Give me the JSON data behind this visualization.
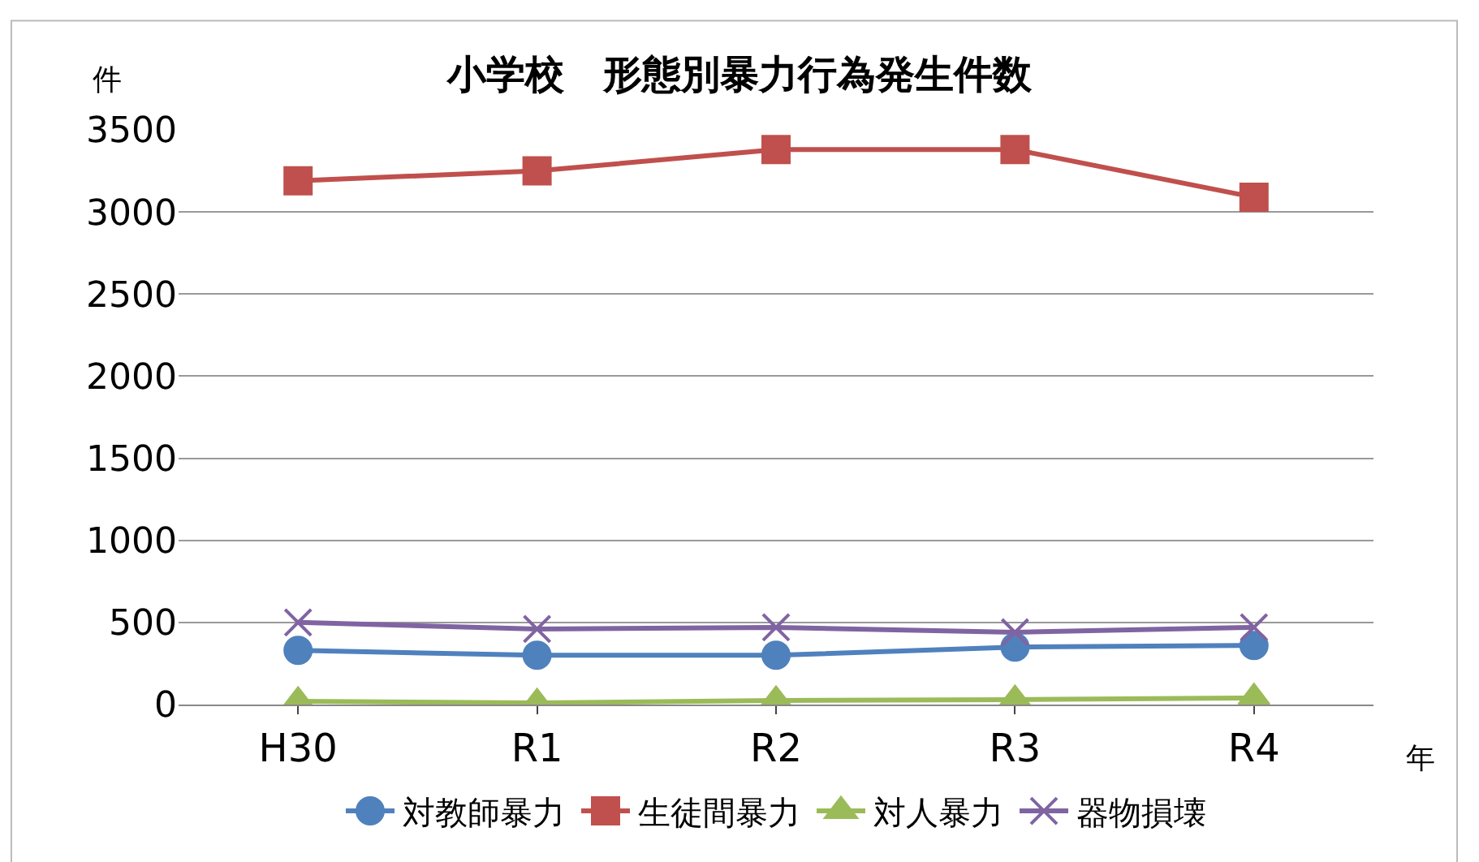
{
  "chart_data": {
    "type": "line",
    "title": "小学校　形態別暴力行為発生件数",
    "ylabel": "件",
    "xlabel": "年",
    "categories": [
      "H30",
      "R1",
      "R2",
      "R3",
      "R4"
    ],
    "series": [
      {
        "name": "対教師暴力",
        "color": "#4f81bd",
        "marker": "circle",
        "values": [
          330,
          300,
          300,
          350,
          360
        ]
      },
      {
        "name": "生徒間暴力",
        "color": "#c0504d",
        "marker": "square",
        "values": [
          3190,
          3250,
          3380,
          3380,
          3090
        ]
      },
      {
        "name": "対人暴力",
        "color": "#9bbb59",
        "marker": "triangle",
        "values": [
          20,
          10,
          25,
          30,
          40
        ]
      },
      {
        "name": "器物損壊",
        "color": "#8064a2",
        "marker": "cross",
        "values": [
          500,
          460,
          470,
          440,
          470
        ]
      }
    ],
    "ylim": [
      0,
      3500
    ],
    "yticks": [
      0,
      500,
      1000,
      1500,
      2000,
      2500,
      3000,
      3500
    ],
    "grid": "y",
    "legend": "bottom"
  }
}
